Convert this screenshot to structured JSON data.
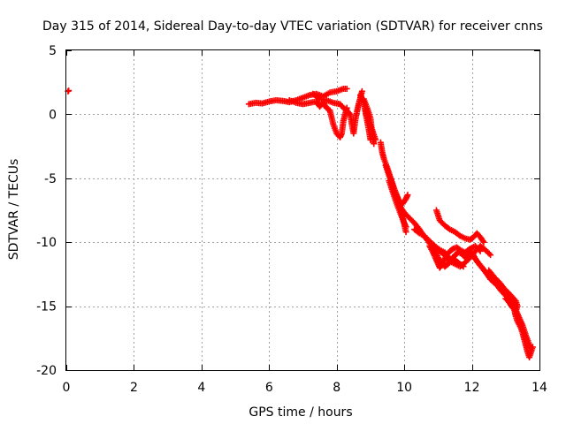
{
  "chart_data": {
    "type": "scatter",
    "title": "Day 315 of 2014, Sidereal Day-to-day VTEC variation (SDTVAR) for receiver cnns",
    "xlabel": "GPS time / hours",
    "ylabel": "SDTVAR / TECUs",
    "xlim": [
      0,
      14
    ],
    "ylim": [
      -20,
      5
    ],
    "xticks": [
      "0",
      "2",
      "4",
      "6",
      "8",
      "10",
      "12",
      "14"
    ],
    "yticks": [
      "5",
      "0",
      "-5",
      "-10",
      "-15",
      "-20"
    ],
    "xtick_values": [
      0,
      2,
      4,
      6,
      8,
      10,
      12,
      14
    ],
    "ytick_values": [
      5,
      0,
      -5,
      -10,
      -15,
      -20
    ],
    "grid": true,
    "marker": "plus",
    "color": "#ff0000",
    "series": [
      {
        "name": "SDTVAR",
        "segments": [
          [
            [
              0.05,
              1.8
            ],
            [
              0.07,
              1.85
            ]
          ],
          [
            [
              5.4,
              0.8
            ],
            [
              5.6,
              0.9
            ],
            [
              5.8,
              0.85
            ],
            [
              6.0,
              1.0
            ],
            [
              6.2,
              1.1
            ],
            [
              6.4,
              1.05
            ],
            [
              6.6,
              0.95
            ],
            [
              6.8,
              1.1
            ],
            [
              7.0,
              1.3
            ],
            [
              7.2,
              1.5
            ],
            [
              7.4,
              1.6
            ],
            [
              7.6,
              1.4
            ],
            [
              7.8,
              1.7
            ],
            [
              8.0,
              1.8
            ],
            [
              8.2,
              2.0
            ],
            [
              8.3,
              2.0
            ]
          ],
          [
            [
              6.6,
              1.1
            ],
            [
              6.8,
              0.9
            ],
            [
              7.0,
              0.8
            ],
            [
              7.2,
              0.9
            ],
            [
              7.4,
              1.0
            ],
            [
              7.5,
              0.6
            ],
            [
              7.6,
              0.9
            ],
            [
              7.7,
              0.5
            ],
            [
              7.8,
              0.3
            ],
            [
              7.9,
              -0.8
            ],
            [
              8.0,
              -1.5
            ],
            [
              8.1,
              -1.8
            ],
            [
              8.15,
              -1.5
            ],
            [
              8.2,
              -0.5
            ],
            [
              8.25,
              0.0
            ],
            [
              8.3,
              0.5
            ]
          ],
          [
            [
              7.3,
              1.6
            ],
            [
              7.5,
              1.2
            ],
            [
              7.7,
              1.1
            ],
            [
              7.9,
              0.9
            ],
            [
              8.1,
              0.8
            ],
            [
              8.2,
              0.5
            ],
            [
              8.3,
              0.3
            ],
            [
              8.4,
              0.0
            ],
            [
              8.45,
              -0.8
            ],
            [
              8.5,
              -1.5
            ],
            [
              8.55,
              -0.5
            ],
            [
              8.6,
              0.2
            ],
            [
              8.65,
              0.8
            ],
            [
              8.7,
              1.3
            ],
            [
              8.75,
              1.8
            ]
          ],
          [
            [
              8.7,
              1.5
            ],
            [
              8.8,
              1.0
            ],
            [
              8.85,
              0.2
            ],
            [
              8.9,
              -0.5
            ],
            [
              8.95,
              -1.2
            ],
            [
              9.0,
              -2.0
            ]
          ],
          [
            [
              8.8,
              1.2
            ],
            [
              8.9,
              0.5
            ],
            [
              9.0,
              -0.3
            ],
            [
              9.05,
              -1.5
            ],
            [
              9.1,
              -2.3
            ]
          ],
          [
            [
              8.85,
              0.3
            ],
            [
              8.95,
              -0.6
            ],
            [
              9.05,
              -1.2
            ],
            [
              9.15,
              -2.0
            ]
          ],
          [
            [
              9.3,
              -2.2
            ],
            [
              9.35,
              -3.0
            ],
            [
              9.4,
              -3.5
            ],
            [
              9.5,
              -4.2
            ],
            [
              9.6,
              -5.0
            ],
            [
              9.7,
              -5.8
            ],
            [
              9.8,
              -6.5
            ],
            [
              9.9,
              -7.4
            ],
            [
              9.95,
              -8.0
            ],
            [
              10.05,
              -9.2
            ]
          ],
          [
            [
              9.45,
              -4.0
            ],
            [
              9.55,
              -4.8
            ],
            [
              9.65,
              -5.5
            ],
            [
              9.75,
              -6.2
            ],
            [
              9.85,
              -6.8
            ],
            [
              9.95,
              -7.0
            ],
            [
              10.05,
              -6.6
            ],
            [
              10.1,
              -6.3
            ]
          ],
          [
            [
              9.55,
              -5.2
            ],
            [
              9.65,
              -6.0
            ],
            [
              9.75,
              -6.8
            ],
            [
              9.85,
              -7.5
            ],
            [
              9.95,
              -8.2
            ],
            [
              10.05,
              -8.8
            ]
          ],
          [
            [
              9.9,
              -7.3
            ],
            [
              10.0,
              -7.7
            ],
            [
              10.15,
              -8.1
            ],
            [
              10.3,
              -8.5
            ],
            [
              10.45,
              -9.0
            ],
            [
              10.6,
              -9.6
            ],
            [
              10.75,
              -9.9
            ],
            [
              10.9,
              -10.3
            ],
            [
              11.05,
              -10.6
            ],
            [
              11.2,
              -10.8
            ],
            [
              11.35,
              -11.3
            ],
            [
              11.5,
              -11.4
            ],
            [
              11.6,
              -11.6
            ],
            [
              11.75,
              -11.9
            ]
          ],
          [
            [
              10.3,
              -9.0
            ],
            [
              10.45,
              -9.3
            ],
            [
              10.6,
              -9.5
            ],
            [
              10.75,
              -10.1
            ],
            [
              10.9,
              -10.4
            ],
            [
              11.05,
              -10.7
            ],
            [
              11.2,
              -11.0
            ],
            [
              11.35,
              -11.5
            ],
            [
              11.5,
              -11.7
            ],
            [
              11.65,
              -11.9
            ],
            [
              11.8,
              -11.6
            ],
            [
              11.95,
              -11.2
            ],
            [
              12.1,
              -10.7
            ],
            [
              12.25,
              -10.3
            ],
            [
              12.4,
              -10.6
            ],
            [
              12.55,
              -11.0
            ]
          ],
          [
            [
              10.75,
              -10.3
            ],
            [
              10.85,
              -10.8
            ],
            [
              10.95,
              -11.4
            ],
            [
              11.05,
              -12.0
            ],
            [
              11.15,
              -11.6
            ],
            [
              11.25,
              -11.0
            ],
            [
              11.35,
              -10.7
            ],
            [
              11.45,
              -10.5
            ],
            [
              11.55,
              -10.4
            ],
            [
              11.65,
              -10.6
            ],
            [
              11.8,
              -10.8
            ],
            [
              11.95,
              -10.5
            ],
            [
              12.1,
              -10.3
            ],
            [
              12.25,
              -10.7
            ]
          ],
          [
            [
              10.95,
              -7.5
            ],
            [
              11.05,
              -8.3
            ],
            [
              11.2,
              -8.7
            ],
            [
              11.35,
              -9.0
            ],
            [
              11.5,
              -9.2
            ],
            [
              11.65,
              -9.5
            ],
            [
              11.8,
              -9.7
            ],
            [
              11.95,
              -9.8
            ],
            [
              12.05,
              -9.6
            ],
            [
              12.15,
              -9.3
            ],
            [
              12.25,
              -9.6
            ],
            [
              12.35,
              -10.0
            ]
          ],
          [
            [
              10.9,
              -10.5
            ],
            [
              11.0,
              -11.2
            ],
            [
              11.1,
              -11.6
            ],
            [
              11.2,
              -11.9
            ],
            [
              11.3,
              -11.7
            ],
            [
              11.4,
              -11.4
            ],
            [
              11.5,
              -11.0
            ],
            [
              11.6,
              -10.8
            ],
            [
              11.7,
              -10.9
            ],
            [
              11.8,
              -11.2
            ],
            [
              11.9,
              -11.0
            ],
            [
              12.0,
              -10.8
            ]
          ],
          [
            [
              12.0,
              -10.8
            ],
            [
              12.15,
              -11.5
            ],
            [
              12.3,
              -12.0
            ],
            [
              12.45,
              -12.5
            ],
            [
              12.6,
              -13.0
            ],
            [
              12.75,
              -13.4
            ],
            [
              12.9,
              -13.9
            ],
            [
              13.05,
              -14.3
            ],
            [
              13.2,
              -14.8
            ],
            [
              13.3,
              -15.3
            ],
            [
              13.4,
              -15.9
            ],
            [
              13.5,
              -16.5
            ],
            [
              13.6,
              -17.3
            ],
            [
              13.7,
              -18.0
            ],
            [
              13.75,
              -18.3
            ]
          ],
          [
            [
              12.1,
              -11.3
            ],
            [
              12.25,
              -11.8
            ],
            [
              12.4,
              -12.3
            ],
            [
              12.55,
              -12.9
            ],
            [
              12.7,
              -13.2
            ],
            [
              12.85,
              -13.5
            ],
            [
              13.0,
              -13.8
            ],
            [
              13.1,
              -14.0
            ],
            [
              13.2,
              -14.3
            ],
            [
              13.3,
              -14.6
            ],
            [
              13.35,
              -15.0
            ],
            [
              13.3,
              -15.4
            ],
            [
              13.2,
              -15.1
            ],
            [
              13.1,
              -14.7
            ],
            [
              13.0,
              -14.4
            ]
          ],
          [
            [
              12.5,
              -12.2
            ],
            [
              12.65,
              -12.7
            ],
            [
              12.8,
              -13.1
            ],
            [
              12.95,
              -13.6
            ],
            [
              13.1,
              -14.1
            ],
            [
              13.2,
              -14.7
            ],
            [
              13.25,
              -15.2
            ],
            [
              13.3,
              -15.8
            ],
            [
              13.35,
              -16.2
            ],
            [
              13.45,
              -16.7
            ],
            [
              13.5,
              -17.1
            ],
            [
              13.55,
              -17.6
            ],
            [
              13.6,
              -18.1
            ],
            [
              13.65,
              -18.6
            ],
            [
              13.7,
              -19.0
            ],
            [
              13.75,
              -18.6
            ],
            [
              13.8,
              -18.2
            ]
          ]
        ]
      }
    ]
  }
}
